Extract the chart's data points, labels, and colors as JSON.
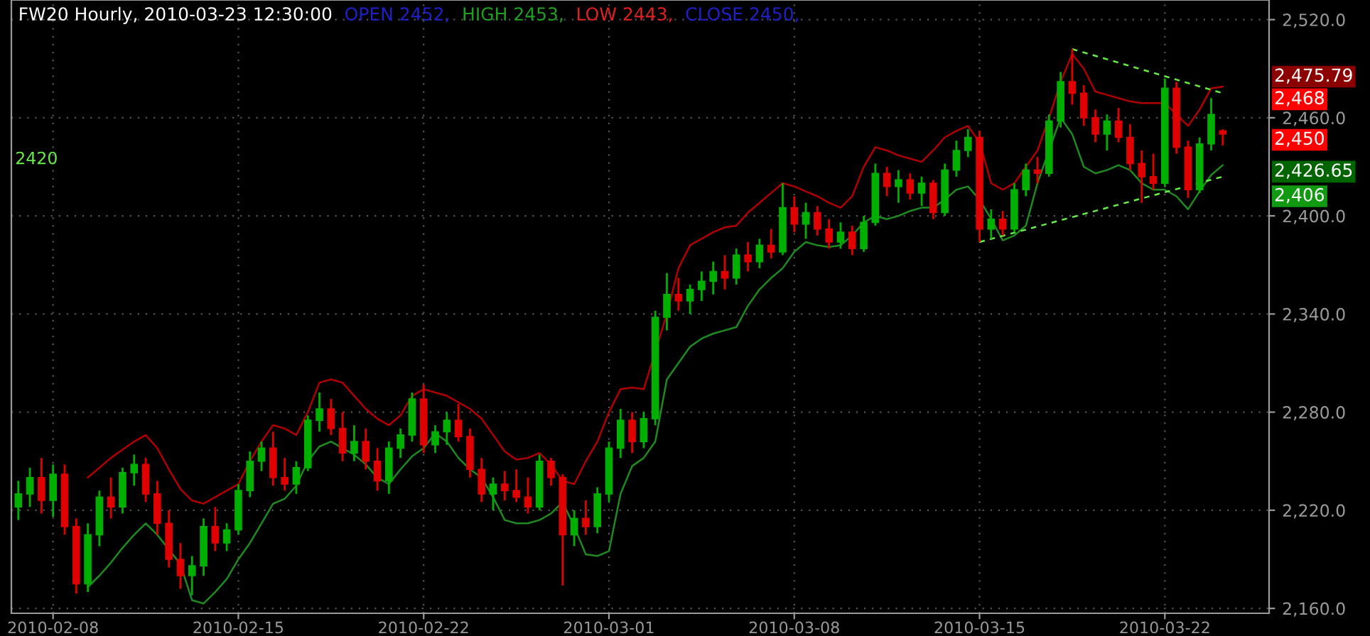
{
  "chart_data": {
    "type": "candlestick",
    "title": "FW20 Hourly, 2010-03-23 12:30:00",
    "categories": [
      null,
      null,
      null,
      "2010-02-08",
      null,
      null,
      null,
      null,
      null,
      null,
      null,
      null,
      null,
      null,
      null,
      null,
      null,
      null,
      null,
      "2010-02-15",
      null,
      null,
      null,
      null,
      null,
      null,
      null,
      null,
      null,
      null,
      null,
      null,
      null,
      null,
      null,
      "2010-02-22",
      null,
      null,
      null,
      null,
      null,
      null,
      null,
      null,
      null,
      null,
      null,
      null,
      null,
      null,
      null,
      "2010-03-01",
      null,
      null,
      null,
      null,
      null,
      null,
      null,
      null,
      null,
      null,
      null,
      null,
      null,
      null,
      null,
      "2010-03-08",
      null,
      null,
      null,
      null,
      null,
      null,
      null,
      null,
      null,
      null,
      null,
      null,
      null,
      null,
      null,
      "2010-03-15",
      null,
      null,
      null,
      null,
      null,
      null,
      null,
      null,
      null,
      null,
      null,
      null,
      null,
      null,
      null,
      "2010-03-22",
      null,
      null,
      null,
      null,
      null
    ],
    "ohlc": [
      [
        2222,
        2238,
        2214,
        2230
      ],
      [
        2230,
        2246,
        2222,
        2240
      ],
      [
        2240,
        2252,
        2218,
        2226
      ],
      [
        2226,
        2248,
        2216,
        2242
      ],
      [
        2242,
        2248,
        2205,
        2210
      ],
      [
        2210,
        2215,
        2169,
        2175
      ],
      [
        2175,
        2212,
        2170,
        2205
      ],
      [
        2205,
        2232,
        2198,
        2228
      ],
      [
        2228,
        2240,
        2215,
        2222
      ],
      [
        2222,
        2246,
        2218,
        2243
      ],
      [
        2243,
        2254,
        2235,
        2248
      ],
      [
        2248,
        2252,
        2225,
        2230
      ],
      [
        2230,
        2238,
        2205,
        2212
      ],
      [
        2212,
        2220,
        2185,
        2190
      ],
      [
        2190,
        2200,
        2172,
        2180
      ],
      [
        2180,
        2192,
        2168,
        2186
      ],
      [
        2186,
        2215,
        2180,
        2210
      ],
      [
        2210,
        2222,
        2195,
        2200
      ],
      [
        2200,
        2212,
        2195,
        2208
      ],
      [
        2208,
        2236,
        2205,
        2232
      ],
      [
        2232,
        2256,
        2228,
        2250
      ],
      [
        2250,
        2262,
        2244,
        2258
      ],
      [
        2258,
        2268,
        2235,
        2240
      ],
      [
        2240,
        2252,
        2232,
        2236
      ],
      [
        2236,
        2250,
        2230,
        2246
      ],
      [
        2246,
        2278,
        2244,
        2275
      ],
      [
        2275,
        2292,
        2268,
        2282
      ],
      [
        2282,
        2288,
        2266,
        2270
      ],
      [
        2270,
        2280,
        2250,
        2255
      ],
      [
        2255,
        2272,
        2250,
        2262
      ],
      [
        2262,
        2270,
        2245,
        2250
      ],
      [
        2250,
        2258,
        2232,
        2238
      ],
      [
        2238,
        2262,
        2230,
        2258
      ],
      [
        2258,
        2270,
        2252,
        2266
      ],
      [
        2266,
        2292,
        2262,
        2288
      ],
      [
        2288,
        2297,
        2255,
        2260
      ],
      [
        2260,
        2272,
        2255,
        2268
      ],
      [
        2268,
        2280,
        2260,
        2275
      ],
      [
        2275,
        2285,
        2262,
        2265
      ],
      [
        2265,
        2270,
        2240,
        2245
      ],
      [
        2245,
        2252,
        2225,
        2230
      ],
      [
        2230,
        2240,
        2220,
        2236
      ],
      [
        2236,
        2244,
        2226,
        2232
      ],
      [
        2232,
        2245,
        2225,
        2228
      ],
      [
        2228,
        2240,
        2218,
        2222
      ],
      [
        2222,
        2254,
        2220,
        2250
      ],
      [
        2250,
        2252,
        2235,
        2240
      ],
      [
        2240,
        2242,
        2174,
        2205
      ],
      [
        2205,
        2220,
        2198,
        2215
      ],
      [
        2215,
        2226,
        2205,
        2210
      ],
      [
        2210,
        2234,
        2206,
        2230
      ],
      [
        2230,
        2262,
        2225,
        2258
      ],
      [
        2258,
        2282,
        2252,
        2275
      ],
      [
        2275,
        2280,
        2255,
        2262
      ],
      [
        2262,
        2280,
        2258,
        2276
      ],
      [
        2276,
        2342,
        2272,
        2338
      ],
      [
        2338,
        2365,
        2330,
        2352
      ],
      [
        2352,
        2362,
        2342,
        2348
      ],
      [
        2348,
        2358,
        2340,
        2355
      ],
      [
        2355,
        2366,
        2348,
        2360
      ],
      [
        2360,
        2372,
        2352,
        2366
      ],
      [
        2366,
        2376,
        2355,
        2362
      ],
      [
        2362,
        2380,
        2358,
        2376
      ],
      [
        2376,
        2384,
        2366,
        2372
      ],
      [
        2372,
        2386,
        2368,
        2382
      ],
      [
        2382,
        2392,
        2374,
        2378
      ],
      [
        2378,
        2420,
        2376,
        2405
      ],
      [
        2405,
        2412,
        2390,
        2395
      ],
      [
        2395,
        2408,
        2386,
        2402
      ],
      [
        2402,
        2406,
        2388,
        2392
      ],
      [
        2392,
        2398,
        2380,
        2384
      ],
      [
        2384,
        2396,
        2380,
        2390
      ],
      [
        2390,
        2394,
        2376,
        2380
      ],
      [
        2380,
        2400,
        2378,
        2396
      ],
      [
        2396,
        2432,
        2394,
        2426
      ],
      [
        2426,
        2430,
        2412,
        2418
      ],
      [
        2418,
        2428,
        2408,
        2422
      ],
      [
        2422,
        2426,
        2410,
        2414
      ],
      [
        2414,
        2424,
        2406,
        2420
      ],
      [
        2420,
        2422,
        2398,
        2402
      ],
      [
        2402,
        2432,
        2400,
        2428
      ],
      [
        2428,
        2446,
        2424,
        2440
      ],
      [
        2440,
        2453,
        2436,
        2448
      ],
      [
        2448,
        2452,
        2384,
        2392
      ],
      [
        2392,
        2404,
        2386,
        2398
      ],
      [
        2398,
        2403,
        2388,
        2392
      ],
      [
        2392,
        2420,
        2390,
        2416
      ],
      [
        2416,
        2432,
        2412,
        2428
      ],
      [
        2428,
        2436,
        2420,
        2426
      ],
      [
        2426,
        2462,
        2424,
        2458
      ],
      [
        2458,
        2488,
        2454,
        2482
      ],
      [
        2482,
        2502,
        2468,
        2475
      ],
      [
        2475,
        2480,
        2455,
        2460
      ],
      [
        2460,
        2465,
        2445,
        2450
      ],
      [
        2450,
        2462,
        2440,
        2458
      ],
      [
        2458,
        2466,
        2445,
        2448
      ],
      [
        2448,
        2456,
        2428,
        2432
      ],
      [
        2432,
        2440,
        2408,
        2424
      ],
      [
        2424,
        2438,
        2416,
        2420
      ],
      [
        2420,
        2484,
        2418,
        2478
      ],
      [
        2478,
        2482,
        2438,
        2442
      ],
      [
        2442,
        2446,
        2411,
        2416
      ],
      [
        2416,
        2448,
        2414,
        2444
      ],
      [
        2444,
        2472,
        2440,
        2462
      ],
      [
        2452,
        2453,
        2443,
        2450
      ]
    ],
    "colors": [
      "#00b000",
      "#00b000",
      "#e00000",
      "#00b000",
      "#e00000",
      "#e00000",
      "#00b000",
      "#00b000",
      "#e00000",
      "#00b000",
      "#00b000",
      "#e00000",
      "#e00000",
      "#e00000",
      "#e00000",
      "#00b000",
      "#00b000",
      "#e00000",
      "#00b000",
      "#00b000",
      "#00b000",
      "#00b000",
      "#e00000",
      "#e00000",
      "#00b000",
      "#00b000",
      "#00b000",
      "#e00000",
      "#e00000",
      "#00b000",
      "#e00000",
      "#e00000",
      "#00b000",
      "#00b000",
      "#00b000",
      "#e00000",
      "#00b000",
      "#00b000",
      "#e00000",
      "#e00000",
      "#e00000",
      "#00b000",
      "#e00000",
      "#e00000",
      "#e00000",
      "#00b000",
      "#e00000",
      "#e00000",
      "#00b000",
      "#e00000",
      "#00b000",
      "#00b000",
      "#00b000",
      "#e00000",
      "#00b000",
      "#00b000",
      "#00b000",
      "#e00000",
      "#00b000",
      "#00b000",
      "#00b000",
      "#e00000",
      "#00b000",
      "#e00000",
      "#00b000",
      "#e00000",
      "#00b000",
      "#e00000",
      "#00b000",
      "#e00000",
      "#e00000",
      "#00b000",
      "#e00000",
      "#00b000",
      "#00b000",
      "#e00000",
      "#00b000",
      "#e00000",
      "#00b000",
      "#e00000",
      "#00b000",
      "#00b000",
      "#00b000",
      "#e00000",
      "#00b000",
      "#e00000",
      "#00b000",
      "#00b000",
      "#e00000",
      "#00b000",
      "#00b000",
      "#e00000",
      "#e00000",
      "#e00000",
      "#00b000",
      "#e00000",
      "#e00000",
      "#e00000",
      "#e00000",
      "#00b000",
      "#e00000",
      "#e00000",
      "#00b000",
      "#00b000",
      "#e00000"
    ],
    "series": [
      {
        "type": "line",
        "color": "#b00000",
        "values": [
          null,
          null,
          null,
          null,
          null,
          null,
          2240,
          2246,
          2252,
          2257,
          2262,
          2266,
          2258,
          2245,
          2233,
          2226,
          2224,
          2228,
          2232,
          2236,
          2250,
          2262,
          2272,
          2270,
          2266,
          2280,
          2298,
          2300,
          2298,
          2290,
          2282,
          2276,
          2272,
          2278,
          2290,
          2294,
          2292,
          2290,
          2286,
          2282,
          2276,
          2266,
          2256,
          2251,
          2252,
          2255,
          2248,
          2238,
          2236,
          2250,
          2262,
          2280,
          2294,
          2295,
          2294,
          null,
          2340,
          2368,
          2382,
          2386,
          2390,
          2393,
          2394,
          2402,
          2408,
          2414,
          2420,
          2418,
          2415,
          2412,
          2408,
          2405,
          2412,
          2430,
          2442,
          2440,
          2437,
          2435,
          2433,
          2440,
          2448,
          2452,
          2455,
          2445,
          2420,
          2416,
          2420,
          2430,
          2440,
          2460,
          2482,
          2499,
          2490,
          2476,
          2474,
          2472,
          2470,
          2469,
          2469,
          2469,
          2462,
          2455,
          2465,
          2478,
          2479
        ]
      },
      {
        "type": "line",
        "color": "#1f8a1f",
        "values": [
          null,
          null,
          null,
          null,
          null,
          null,
          2173,
          2180,
          2188,
          2197,
          2205,
          2212,
          2205,
          2196,
          2187,
          2165,
          2163,
          2170,
          2178,
          2190,
          2200,
          2212,
          2224,
          2227,
          2235,
          2250,
          2259,
          2262,
          2258,
          2254,
          2248,
          2240,
          2236,
          2245,
          2253,
          2258,
          2267,
          2262,
          2252,
          2245,
          2240,
          2228,
          2214,
          2212,
          2212,
          2214,
          2218,
          2225,
          2210,
          2193,
          2192,
          2195,
          2230,
          2247,
          2252,
          2262,
          2300,
          2310,
          2320,
          2325,
          2328,
          2330,
          2332,
          2345,
          2355,
          2362,
          2368,
          2378,
          2384,
          2382,
          2381,
          2382,
          2388,
          2396,
          2400,
          2398,
          2400,
          2403,
          2405,
          2405,
          2410,
          2416,
          2418,
          2410,
          2398,
          2385,
          2388,
          2394,
          2420,
          2440,
          2460,
          2450,
          2430,
          2426,
          2428,
          2431,
          2428,
          2420,
          2416,
          2416,
          2412,
          2404,
          2415,
          2425,
          2431
        ]
      },
      {
        "type": "line",
        "color": "#66ee44",
        "line_style": "dashed",
        "values": [
          null,
          null,
          null,
          null,
          null,
          null,
          null,
          null,
          null,
          null,
          null,
          null,
          null,
          null,
          null,
          null,
          null,
          null,
          null,
          null,
          null,
          null,
          null,
          null,
          null,
          null,
          null,
          null,
          null,
          null,
          null,
          null,
          null,
          null,
          null,
          null,
          null,
          null,
          null,
          null,
          null,
          null,
          null,
          null,
          null,
          null,
          null,
          null,
          null,
          null,
          null,
          null,
          null,
          null,
          null,
          null,
          null,
          null,
          null,
          null,
          null,
          null,
          null,
          null,
          null,
          null,
          null,
          null,
          null,
          null,
          null,
          null,
          null,
          null,
          null,
          null,
          null,
          null,
          null,
          null,
          null,
          null,
          null,
          null,
          null,
          null,
          null,
          null,
          null,
          null,
          null,
          2502,
          null,
          null,
          null,
          null,
          null,
          null,
          null,
          null,
          null,
          null,
          null,
          null,
          2475
        ]
      },
      {
        "type": "line",
        "color": "#66ee44",
        "line_style": "dashed",
        "values": [
          null,
          null,
          null,
          null,
          null,
          null,
          null,
          null,
          null,
          null,
          null,
          null,
          null,
          null,
          null,
          null,
          null,
          null,
          null,
          null,
          null,
          null,
          null,
          null,
          null,
          null,
          null,
          null,
          null,
          null,
          null,
          null,
          null,
          null,
          null,
          null,
          null,
          null,
          null,
          null,
          null,
          null,
          null,
          null,
          null,
          null,
          null,
          null,
          null,
          null,
          null,
          null,
          null,
          null,
          null,
          null,
          null,
          null,
          null,
          null,
          null,
          null,
          null,
          null,
          null,
          null,
          null,
          null,
          null,
          null,
          null,
          null,
          null,
          null,
          null,
          null,
          null,
          null,
          null,
          null,
          null,
          null,
          null,
          2384,
          null,
          null,
          null,
          null,
          null,
          null,
          null,
          null,
          null,
          null,
          null,
          null,
          null,
          null,
          null,
          null,
          null,
          null,
          null,
          null,
          2424
        ]
      }
    ],
    "ylim": [
      2157,
      2532
    ],
    "yticks": [
      {
        "value": 2160,
        "label": "2,160.0"
      },
      {
        "value": 2220,
        "label": "2,220.0"
      },
      {
        "value": 2280,
        "label": "2,280.0"
      },
      {
        "value": 2340,
        "label": "2,340.0"
      },
      {
        "value": 2400,
        "label": "2,400.0"
      },
      {
        "value": 2460,
        "label": "2,460.0"
      },
      {
        "value": 2520,
        "label": "2,520.0"
      }
    ],
    "grid": true,
    "annotations": [
      "OPEN 2452,",
      "HIGH 2453,",
      "LOW 2443,",
      "CLOSE 2450,",
      "2,475.79",
      "2,468",
      "2,450",
      "2,426.65",
      "2,406",
      "2420"
    ]
  }
}
